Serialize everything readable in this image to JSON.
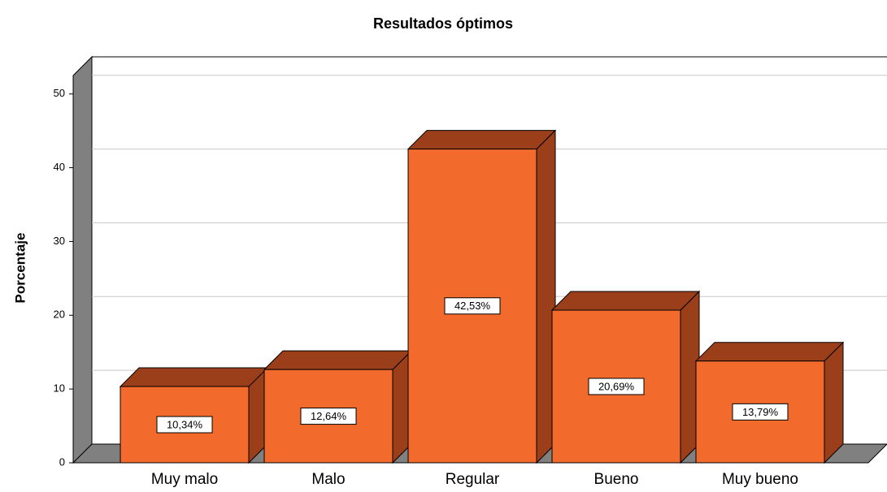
{
  "chart_data": {
    "type": "bar3d",
    "title": "Resultados óptimos",
    "y_label": "Porcentaje",
    "categories": [
      "Muy malo",
      "Malo",
      "Regular",
      "Bueno",
      "Muy bueno"
    ],
    "values": [
      10.34,
      12.64,
      42.53,
      20.69,
      13.79
    ],
    "value_labels": [
      "10,34%",
      "12,64%",
      "42,53%",
      "20,69%",
      "13,79%"
    ],
    "color": "#f26a2c",
    "side_color": "#9b3f1b",
    "ylim": [
      0,
      52.5
    ],
    "yticks": [
      0,
      10,
      20,
      30,
      40,
      50
    ],
    "grid": true
  }
}
